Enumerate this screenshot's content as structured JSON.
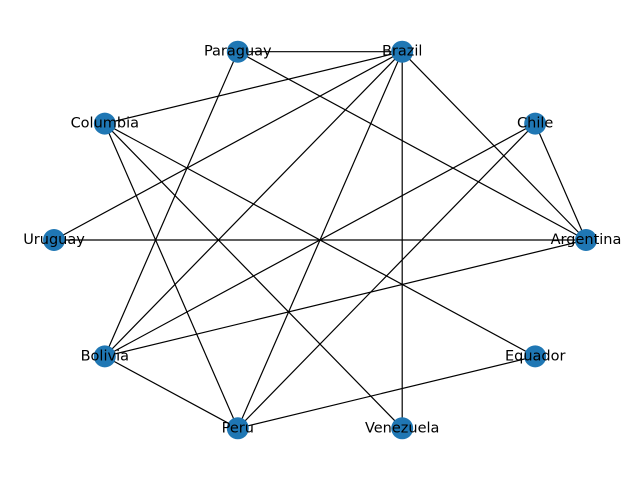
{
  "graph": {
    "node_color": "#1f77b4",
    "edge_color": "#000000",
    "nodes": [
      {
        "id": "Brazil",
        "label": "Brazil"
      },
      {
        "id": "Chile",
        "label": "Chile"
      },
      {
        "id": "Argentina",
        "label": "Argentina"
      },
      {
        "id": "Equador",
        "label": "Equador"
      },
      {
        "id": "Venezuela",
        "label": "Venezuela"
      },
      {
        "id": "Peru",
        "label": "Peru"
      },
      {
        "id": "Bolivia",
        "label": "Bolivia"
      },
      {
        "id": "Uruguay",
        "label": "Uruguay"
      },
      {
        "id": "Columbia",
        "label": "Columbia"
      },
      {
        "id": "Paraguay",
        "label": "Paraguay"
      }
    ],
    "edges": [
      [
        "Paraguay",
        "Brazil"
      ],
      [
        "Paraguay",
        "Argentina"
      ],
      [
        "Paraguay",
        "Bolivia"
      ],
      [
        "Brazil",
        "Columbia"
      ],
      [
        "Brazil",
        "Uruguay"
      ],
      [
        "Brazil",
        "Bolivia"
      ],
      [
        "Brazil",
        "Peru"
      ],
      [
        "Brazil",
        "Venezuela"
      ],
      [
        "Brazil",
        "Argentina"
      ],
      [
        "Chile",
        "Argentina"
      ],
      [
        "Chile",
        "Bolivia"
      ],
      [
        "Chile",
        "Peru"
      ],
      [
        "Columbia",
        "Peru"
      ],
      [
        "Columbia",
        "Venezuela"
      ],
      [
        "Columbia",
        "Equador"
      ],
      [
        "Uruguay",
        "Argentina"
      ],
      [
        "Argentina",
        "Bolivia"
      ],
      [
        "Bolivia",
        "Peru"
      ],
      [
        "Peru",
        "Equador"
      ]
    ]
  }
}
